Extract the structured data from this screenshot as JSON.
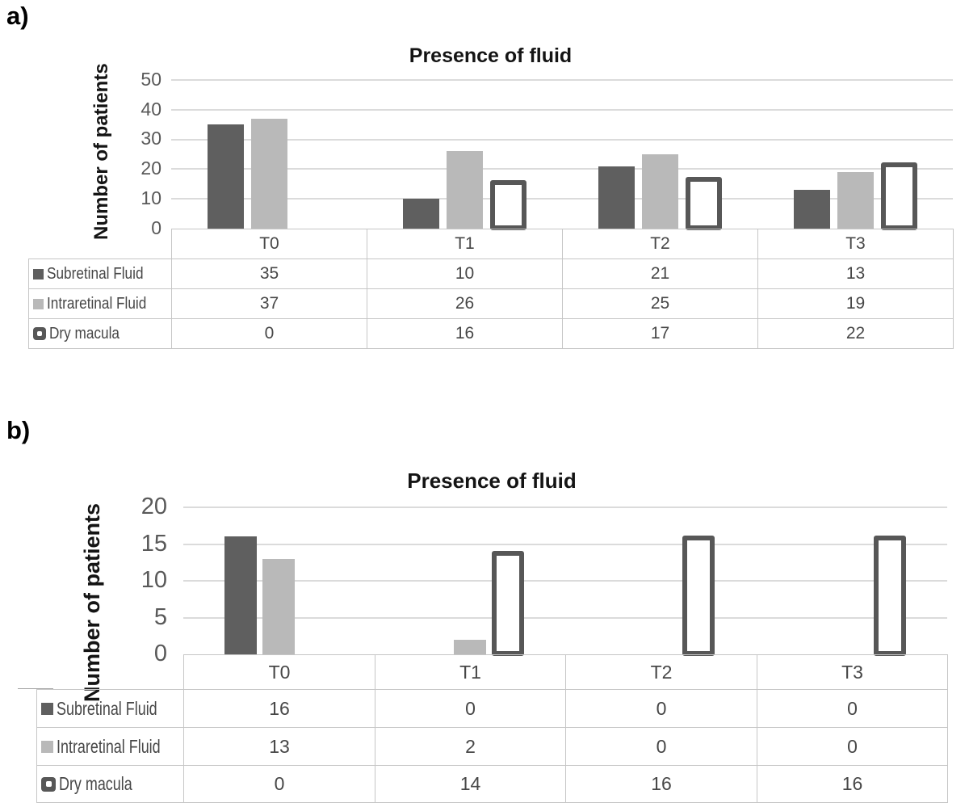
{
  "colors": {
    "series_dark": "#5f5f5f",
    "series_light": "#b9b9b9",
    "outline_stroke": "#575757",
    "gridline": "#dbdbdb",
    "table_border": "#c6c6c6",
    "tick_text": "#595959",
    "table_text": "#474747",
    "title_text": "#141414"
  },
  "chart_data": [
    {
      "type": "bar",
      "panel_label": "a)",
      "title": "Presence of fluid",
      "ylabel": "Number of patients",
      "categories": [
        "T0",
        "T1",
        "T2",
        "T3"
      ],
      "yticks": [
        50,
        40,
        30,
        20,
        10,
        0
      ],
      "ylim": [
        0,
        50
      ],
      "grid": true,
      "legend_position": "table-left",
      "series": [
        {
          "name": "Subretinal Fluid",
          "style": "solid_dark",
          "values": [
            35,
            10,
            21,
            13
          ]
        },
        {
          "name": "Intraretinal Fluid",
          "style": "solid_light",
          "values": [
            37,
            26,
            25,
            19
          ]
        },
        {
          "name": "Dry macula",
          "style": "outlined_white",
          "values": [
            0,
            16,
            17,
            22
          ]
        }
      ]
    },
    {
      "type": "bar",
      "panel_label": "b)",
      "title": "Presence of fluid",
      "ylabel": "Number of patients",
      "categories": [
        "T0",
        "T1",
        "T2",
        "T3"
      ],
      "yticks": [
        20,
        15,
        10,
        5,
        0
      ],
      "ylim": [
        0,
        20
      ],
      "grid": true,
      "legend_position": "table-left",
      "series": [
        {
          "name": "Subretinal Fluid",
          "style": "solid_dark",
          "values": [
            16,
            0,
            0,
            0
          ]
        },
        {
          "name": "Intraretinal Fluid",
          "style": "solid_light",
          "values": [
            13,
            2,
            0,
            0
          ]
        },
        {
          "name": "Dry macula",
          "style": "outlined_white",
          "values": [
            0,
            14,
            16,
            16
          ]
        }
      ]
    }
  ]
}
